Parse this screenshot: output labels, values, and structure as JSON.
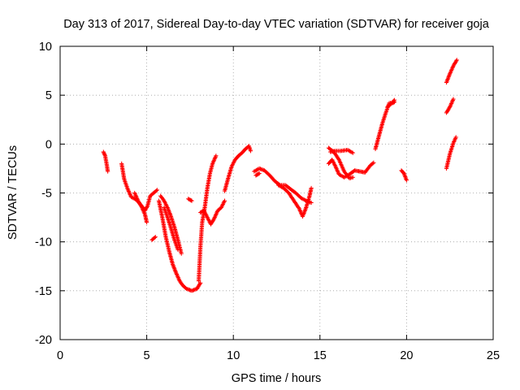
{
  "chart_data": {
    "type": "scatter",
    "title": "Day 313 of 2017, Sidereal Day-to-day VTEC variation (SDTVAR) for receiver goja",
    "xlabel": "GPS time / hours",
    "ylabel": "SDTVAR / TECUs",
    "xlim": [
      0,
      25
    ],
    "ylim": [
      -20,
      10
    ],
    "xticks": [
      0,
      5,
      10,
      15,
      20,
      25
    ],
    "yticks": [
      -20,
      -15,
      -10,
      -5,
      0,
      5,
      10
    ],
    "grid": true,
    "marker": "plus",
    "color": "#ff0000",
    "series": [
      {
        "name": "seg1",
        "x": [
          2.5,
          2.6,
          2.7,
          2.75
        ],
        "y": [
          -0.8,
          -1.2,
          -2.2,
          -2.8
        ]
      },
      {
        "name": "seg2",
        "x": [
          3.55,
          3.7,
          3.9,
          4.1,
          4.4,
          4.7,
          4.9,
          5.05,
          5.2,
          5.4,
          5.6
        ],
        "y": [
          -2.0,
          -3.6,
          -4.6,
          -5.4,
          -5.7,
          -6.3,
          -6.8,
          -6.3,
          -5.3,
          -5.0,
          -4.7
        ]
      },
      {
        "name": "seg3",
        "x": [
          4.3,
          4.5,
          4.7,
          4.9,
          5.0
        ],
        "y": [
          -5.0,
          -5.8,
          -6.4,
          -7.2,
          -8.0
        ]
      },
      {
        "name": "seg4",
        "x": [
          5.3,
          5.5
        ],
        "y": [
          -9.8,
          -9.5
        ]
      },
      {
        "name": "seg5",
        "x": [
          5.7,
          5.9,
          6.1,
          6.3,
          6.5,
          6.7,
          6.9,
          7.1,
          7.3,
          7.6,
          7.9,
          8.1
        ],
        "y": [
          -5.8,
          -7.5,
          -9.5,
          -11.0,
          -12.3,
          -13.2,
          -14.0,
          -14.5,
          -14.8,
          -15.0,
          -14.8,
          -14.2
        ]
      },
      {
        "name": "seg6",
        "x": [
          5.8,
          6.0,
          6.2,
          6.4,
          6.6,
          6.8,
          7.0
        ],
        "y": [
          -5.3,
          -5.8,
          -6.5,
          -7.4,
          -8.5,
          -9.8,
          -11.2
        ]
      },
      {
        "name": "seg7",
        "x": [
          6.0,
          6.2,
          6.4,
          6.6,
          6.8
        ],
        "y": [
          -6.5,
          -7.5,
          -8.6,
          -9.8,
          -10.8
        ]
      },
      {
        "name": "seg8",
        "x": [
          7.4,
          7.6
        ],
        "y": [
          -5.6,
          -5.8
        ]
      },
      {
        "name": "seg9",
        "x": [
          8.0,
          8.1,
          8.2,
          8.35,
          8.5,
          8.65,
          8.8,
          9.0
        ],
        "y": [
          -14.0,
          -10.5,
          -8.0,
          -6.5,
          -4.5,
          -3.0,
          -2.0,
          -1.2
        ]
      },
      {
        "name": "seg10",
        "x": [
          8.1,
          8.3,
          8.5,
          8.7,
          8.9,
          9.1,
          9.3,
          9.5
        ],
        "y": [
          -7.0,
          -6.8,
          -7.5,
          -8.2,
          -7.6,
          -6.8,
          -6.5,
          -5.8
        ]
      },
      {
        "name": "seg11",
        "x": [
          9.5,
          9.7,
          9.9,
          10.1,
          10.3,
          10.5,
          10.7,
          10.9,
          11.0
        ],
        "y": [
          -4.8,
          -3.5,
          -2.3,
          -1.6,
          -1.2,
          -0.9,
          -0.5,
          -0.2,
          -0.7
        ]
      },
      {
        "name": "seg12",
        "x": [
          11.2,
          11.5,
          11.8,
          12.1,
          12.4,
          12.7,
          13.0,
          13.3,
          13.6,
          13.9,
          14.2,
          14.5
        ],
        "y": [
          -2.8,
          -2.5,
          -2.7,
          -3.2,
          -3.8,
          -4.2,
          -4.2,
          -4.6,
          -5.0,
          -5.5,
          -5.8,
          -6.0
        ]
      },
      {
        "name": "seg13",
        "x": [
          11.3,
          11.5
        ],
        "y": [
          -3.2,
          -3.0
        ]
      },
      {
        "name": "seg14",
        "x": [
          12.6,
          12.9,
          13.2,
          13.5,
          13.8,
          14.0,
          14.2,
          14.4,
          14.5
        ],
        "y": [
          -4.2,
          -4.5,
          -5.0,
          -5.8,
          -6.6,
          -7.4,
          -6.5,
          -5.3,
          -4.5
        ]
      },
      {
        "name": "seg15",
        "x": [
          15.5,
          15.7,
          15.9,
          16.1,
          16.4,
          16.7,
          17.0,
          17.3,
          17.6,
          17.9,
          18.1
        ],
        "y": [
          -2.0,
          -1.6,
          -2.3,
          -3.1,
          -3.4,
          -3.1,
          -2.7,
          -2.8,
          -2.9,
          -2.2,
          -1.9
        ]
      },
      {
        "name": "seg16",
        "x": [
          15.5,
          15.8,
          16.1,
          16.4,
          16.7,
          16.9
        ],
        "y": [
          -0.4,
          -0.8,
          -1.6,
          -2.8,
          -3.5,
          -3.4
        ]
      },
      {
        "name": "seg17",
        "x": [
          15.6,
          15.9,
          16.2,
          16.6,
          16.9
        ],
        "y": [
          -0.8,
          -0.7,
          -0.7,
          -0.6,
          -0.9
        ]
      },
      {
        "name": "seg18",
        "x": [
          18.2,
          18.4,
          18.6,
          18.8,
          19.0,
          19.2,
          19.3
        ],
        "y": [
          -0.5,
          0.8,
          2.1,
          3.2,
          4.2,
          4.2,
          4.3
        ]
      },
      {
        "name": "seg19",
        "x": [
          18.9,
          19.1,
          19.3
        ],
        "y": [
          3.8,
          4.1,
          4.5
        ]
      },
      {
        "name": "seg20",
        "x": [
          19.7,
          19.85,
          20.0
        ],
        "y": [
          -2.7,
          -3.0,
          -3.7
        ]
      },
      {
        "name": "seg21",
        "x": [
          22.3,
          22.5,
          22.7,
          22.85
        ],
        "y": [
          -2.5,
          -1.0,
          0.1,
          0.7
        ]
      },
      {
        "name": "seg22",
        "x": [
          22.3,
          22.5,
          22.7
        ],
        "y": [
          3.2,
          3.8,
          4.6
        ]
      },
      {
        "name": "seg23",
        "x": [
          22.3,
          22.5,
          22.7,
          22.9
        ],
        "y": [
          6.3,
          7.2,
          8.0,
          8.6
        ]
      }
    ]
  }
}
